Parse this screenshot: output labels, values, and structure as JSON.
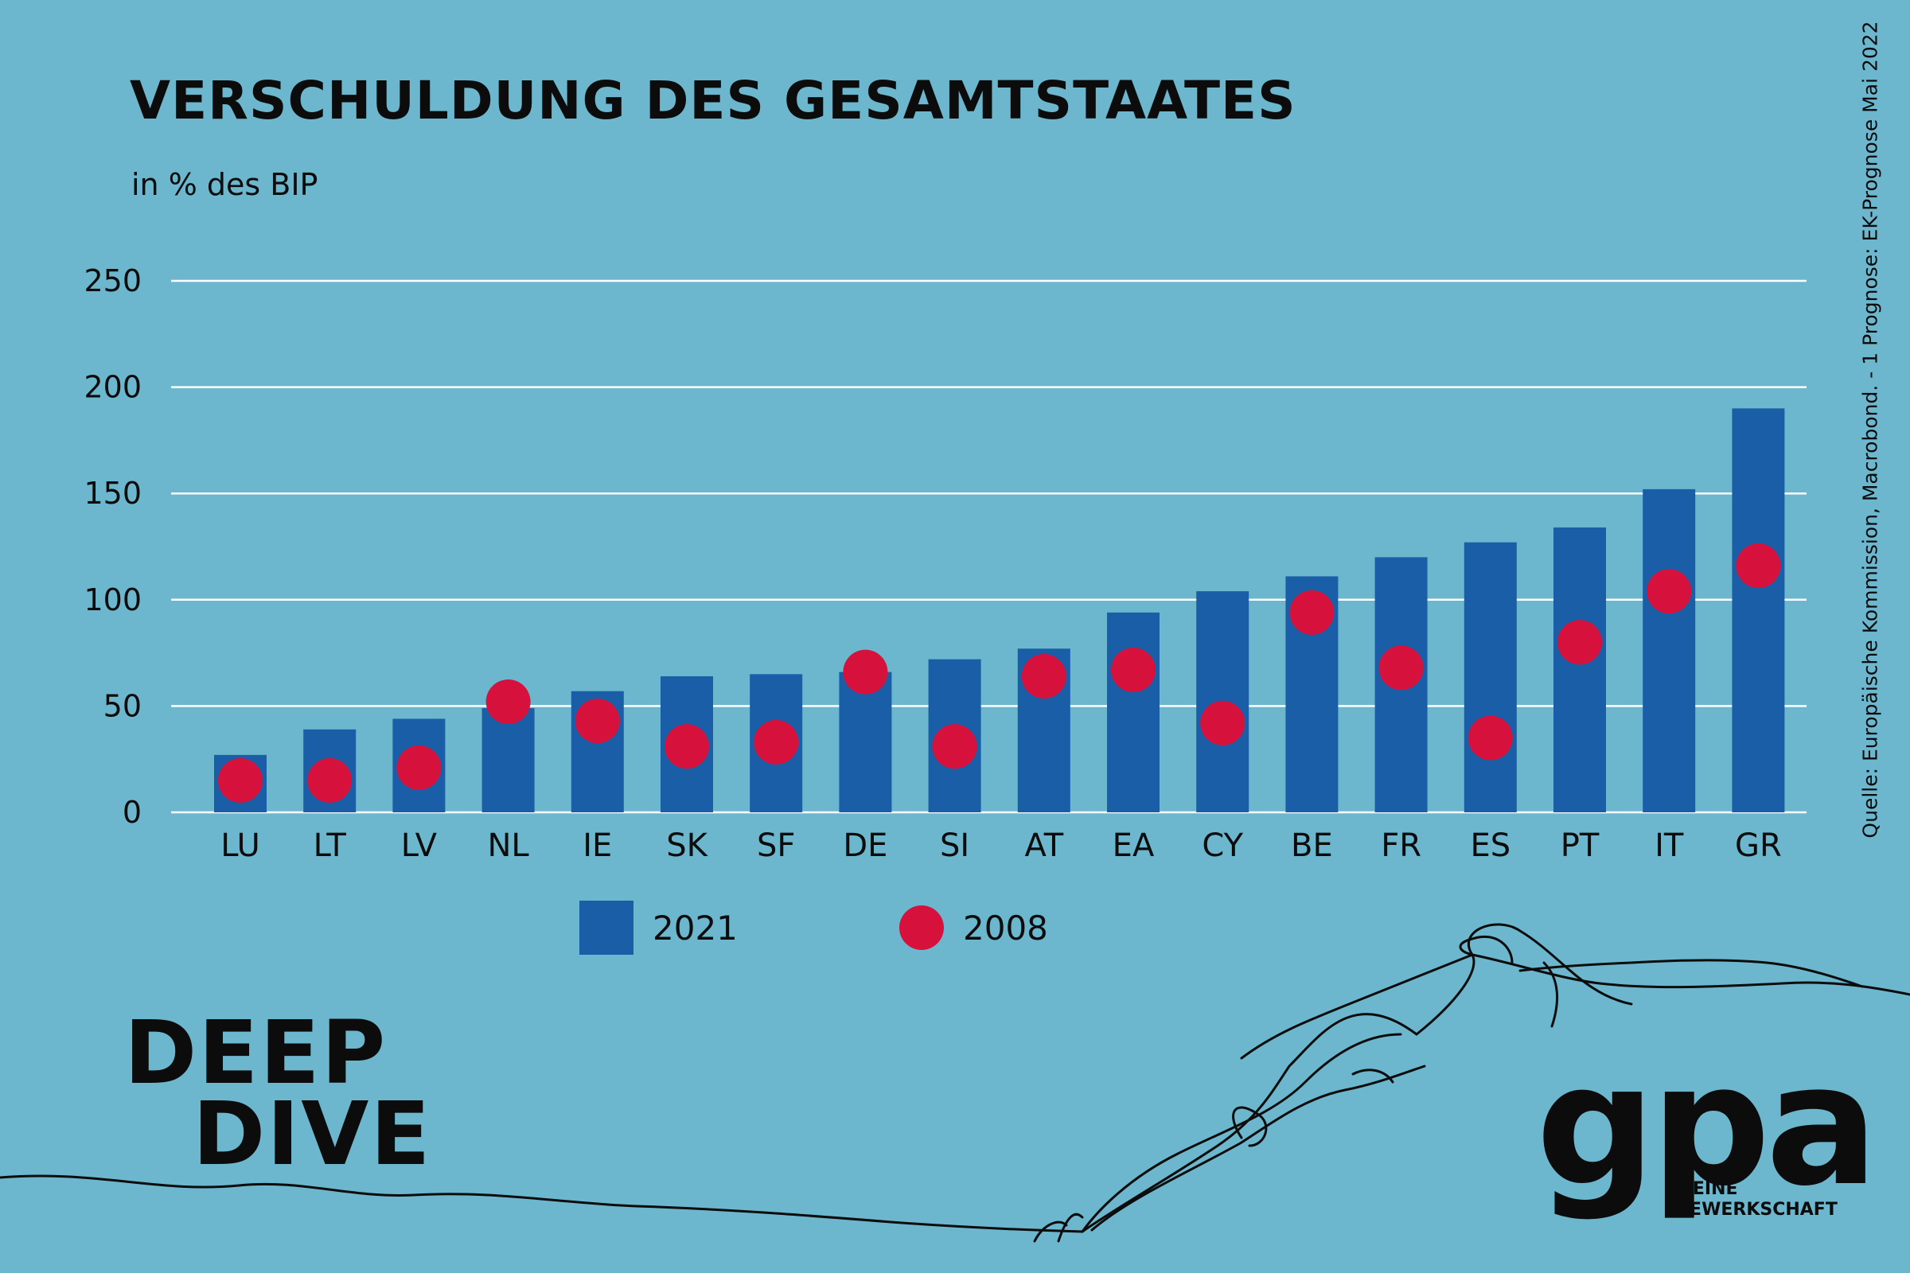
{
  "header": {
    "title": "VERSCHULDUNG DES GESAMTSTAATES",
    "subtitle": "in % des BIP",
    "source": "Quelle: Europäische Kommission, Macrobond. - 1 Prognose: EK-Prognose Mai 2022"
  },
  "colors": {
    "background": "#6cb7ce",
    "bar_2021": "#1a5ea8",
    "dot_2008": "#d6113c",
    "gridline": "#ffffff",
    "text": "#0c0c0c"
  },
  "chart_data": {
    "type": "bar",
    "title": "VERSCHULDUNG DES GESAMTSTAATES",
    "ylabel": "in % des BIP",
    "xlabel": "",
    "ylim": [
      0,
      250
    ],
    "yticks": [
      0,
      50,
      100,
      150,
      200,
      250
    ],
    "grid": true,
    "legend_position": "bottom",
    "categories": [
      "LU",
      "LT",
      "LV",
      "NL",
      "IE",
      "SK",
      "SF",
      "DE",
      "SI",
      "AT",
      "EA",
      "CY",
      "BE",
      "FR",
      "ES",
      "PT",
      "IT",
      "GR"
    ],
    "series": [
      {
        "name": "2021",
        "type": "bar",
        "color": "#1a5ea8",
        "values": [
          27,
          39,
          44,
          49,
          57,
          64,
          65,
          66,
          72,
          77,
          94,
          104,
          111,
          120,
          127,
          134,
          152,
          190
        ]
      },
      {
        "name": "2008",
        "type": "scatter",
        "color": "#d6113c",
        "values": [
          15,
          15,
          21,
          52,
          43,
          31,
          33,
          66,
          31,
          64,
          67,
          42,
          94,
          68,
          35,
          80,
          104,
          116
        ]
      }
    ]
  },
  "branding": {
    "campaign_line1": "DEEP",
    "campaign_line2": "DIVE",
    "logo_text": "gpa",
    "logo_tagline_line1": "MEINE",
    "logo_tagline_line2": "GEWERKSCHAFT"
  }
}
